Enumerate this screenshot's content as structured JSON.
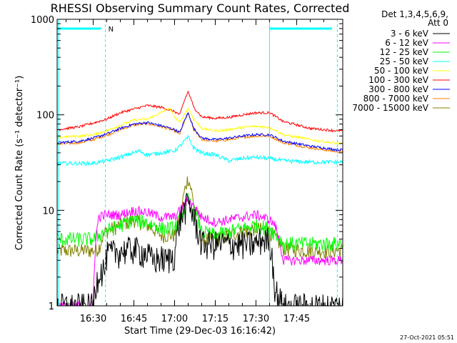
{
  "chart_data": {
    "type": "line",
    "title": "RHESSI Observing Summary Count Rates, Corrected",
    "xlabel": "Start Time (29-Dec-03 16:16:42)",
    "ylabel": "Corrected Count Rate (s⁻¹ detector⁻¹)",
    "y_scale": "log",
    "ylim": [
      1,
      1000
    ],
    "xlim_minutes": [
      16.7,
      122
    ],
    "xticks": [
      {
        "label": "16:30",
        "minute": 30
      },
      {
        "label": "16:45",
        "minute": 45
      },
      {
        "label": "17:00",
        "minute": 60
      },
      {
        "label": "17:15",
        "minute": 75
      },
      {
        "label": "17:30",
        "minute": 90
      },
      {
        "label": "17:45",
        "minute": 105
      }
    ],
    "yticks": [
      {
        "label": "1",
        "value": 1
      },
      {
        "label": "10",
        "value": 10
      },
      {
        "label": "100",
        "value": 100
      },
      {
        "label": "1000",
        "value": 1000
      }
    ],
    "legend_header": [
      "Det 1,3,4,5,6,9,",
      "Att 0"
    ],
    "legend_position": "right",
    "night_marker": {
      "label": "N",
      "start_minute": 34.5,
      "end_minute": 95,
      "level": 800
    },
    "saa_dashed_minutes": [
      34.5,
      120
    ],
    "series": [
      {
        "name": "3 - 6 keV",
        "color": "#000000",
        "x": [
          16.7,
          30,
          32,
          34.5,
          35,
          40,
          45,
          50,
          52,
          55,
          57,
          60,
          62,
          65,
          68,
          70,
          75,
          80,
          85,
          90,
          92,
          95,
          97,
          100
        ],
        "y": [
          1,
          1,
          2.3,
          2.5,
          3.5,
          3.8,
          4.0,
          3.5,
          3.0,
          3.2,
          3.0,
          3.5,
          8,
          12,
          7,
          4.5,
          4.5,
          4.5,
          4.5,
          4.5,
          5,
          5,
          1.5,
          1
        ]
      },
      {
        "name": "6 - 12 keV",
        "color": "#ff00ff",
        "x": [
          16.7,
          30,
          32,
          34.5,
          40,
          45,
          50,
          55,
          60,
          62,
          65,
          67,
          70,
          75,
          80,
          85,
          90,
          95,
          97,
          100
        ],
        "y": [
          1,
          1,
          8.5,
          9,
          9,
          10,
          9.5,
          8.5,
          8.5,
          10,
          13,
          11,
          8.5,
          7.5,
          8,
          8.5,
          9,
          8,
          7,
          3
        ]
      },
      {
        "name": "12 - 25 keV",
        "color": "#00ff00",
        "x": [
          16.7,
          30,
          32,
          34.5,
          40,
          45,
          50,
          55,
          60,
          62,
          65,
          67,
          70,
          75,
          80,
          85,
          90,
          95,
          100,
          110,
          120
        ],
        "y": [
          5,
          5,
          5.5,
          6,
          7,
          8,
          7.5,
          6.5,
          6.5,
          8,
          13,
          10,
          6,
          5.5,
          6,
          6.5,
          7,
          6.5,
          4.5,
          4.5,
          4.5
        ]
      },
      {
        "name": "25 - 50 keV",
        "color": "#00ffff",
        "x": [
          16.7,
          20,
          25,
          30,
          35,
          40,
          45,
          47,
          50,
          55,
          60,
          62,
          65,
          67,
          70,
          75,
          80,
          85,
          90,
          95,
          100,
          110,
          120
        ],
        "y": [
          31,
          31,
          31,
          31,
          33,
          36,
          40,
          42,
          38,
          40,
          42,
          47,
          58,
          45,
          40,
          38,
          33,
          35,
          36,
          35,
          33,
          32,
          32
        ]
      },
      {
        "name": "50 - 100 keV",
        "color": "#ffff00",
        "x": [
          16.7,
          25,
          30,
          35,
          40,
          45,
          50,
          55,
          58,
          60,
          62,
          65,
          67,
          70,
          75,
          80,
          85,
          90,
          95,
          100,
          110,
          120
        ],
        "y": [
          58,
          60,
          62,
          68,
          78,
          88,
          90,
          105,
          118,
          95,
          82,
          118,
          90,
          72,
          68,
          70,
          74,
          76,
          74,
          62,
          55,
          50
        ]
      },
      {
        "name": "100 - 300 keV",
        "color": "#ff0000",
        "x": [
          16.7,
          25,
          30,
          35,
          40,
          45,
          50,
          55,
          60,
          62,
          65,
          67,
          70,
          75,
          80,
          85,
          90,
          95,
          100,
          110,
          120
        ],
        "y": [
          70,
          75,
          82,
          90,
          105,
          115,
          125,
          120,
          108,
          100,
          175,
          120,
          95,
          92,
          94,
          100,
          105,
          105,
          85,
          72,
          68
        ]
      },
      {
        "name": "300 - 800 keV",
        "color": "#0000ff",
        "x": [
          16.7,
          25,
          30,
          35,
          40,
          45,
          50,
          55,
          60,
          62,
          65,
          67,
          70,
          75,
          80,
          85,
          90,
          95,
          100,
          110,
          120
        ],
        "y": [
          51,
          53,
          57,
          63,
          72,
          80,
          83,
          77,
          70,
          65,
          105,
          72,
          57,
          55,
          57,
          60,
          62,
          62,
          53,
          47,
          43
        ]
      },
      {
        "name": "800 - 7000 keV",
        "color": "#ff8000",
        "x": [
          16.7,
          25,
          30,
          35,
          40,
          45,
          50,
          55,
          60,
          62,
          65,
          67,
          70,
          75,
          80,
          85,
          90,
          95,
          100,
          110,
          120
        ],
        "y": [
          49,
          51,
          55,
          61,
          70,
          78,
          81,
          75,
          68,
          63,
          102,
          70,
          55,
          53,
          55,
          58,
          60,
          60,
          51,
          45,
          41
        ]
      },
      {
        "name": "7000 - 15000 keV",
        "color": "#808000",
        "x": [
          16.7,
          30,
          32,
          34.5,
          40,
          45,
          50,
          55,
          60,
          62,
          65,
          67,
          70,
          75,
          80,
          85,
          90,
          95,
          100,
          110,
          120
        ],
        "y": [
          3.8,
          3.8,
          4,
          6,
          7,
          8,
          7,
          5.5,
          5.5,
          8,
          22,
          12,
          5,
          5,
          5.5,
          6,
          6.5,
          6,
          4,
          3.8,
          3.8
        ]
      }
    ],
    "grid": false
  },
  "timestamp": "27-Oct-2021 05:51"
}
